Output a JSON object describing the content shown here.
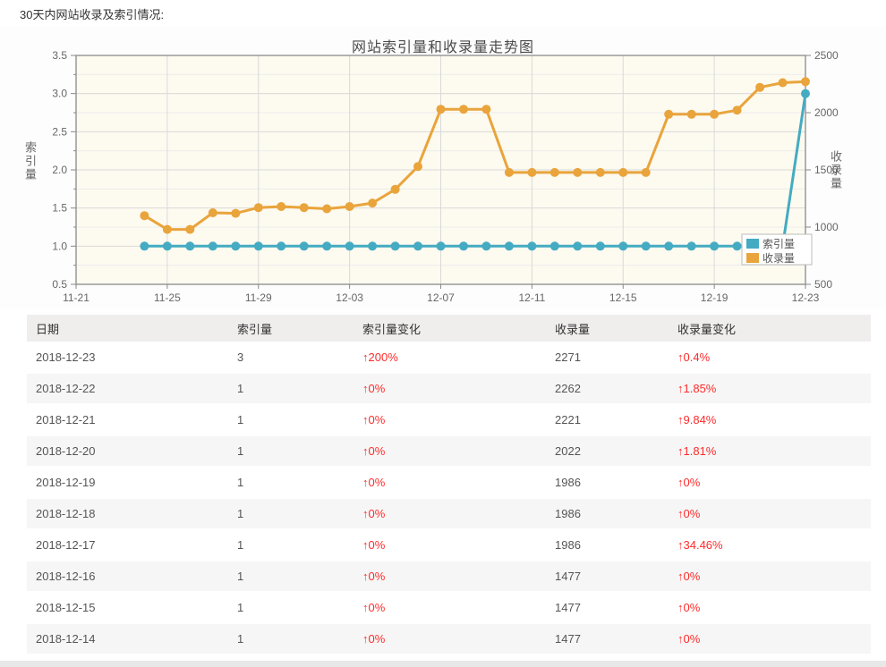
{
  "page": {
    "title": "30天内网站收录及索引情况:"
  },
  "chart_data": {
    "type": "line",
    "title": "网站索引量和收录量走势图",
    "x_tick_labels": [
      "11-21",
      "11-25",
      "11-29",
      "12-03",
      "12-07",
      "12-11",
      "12-15",
      "12-19",
      "12-23"
    ],
    "x_tick_step_days": 4,
    "x_range_days": 32,
    "grid": true,
    "left_axis": {
      "label": "索引量",
      "min": 0.5,
      "max": 3.5,
      "tick_step": 0.5,
      "tick_labels": [
        "0.5",
        "1.0",
        "1.5",
        "2.0",
        "2.5",
        "3.0",
        "3.5"
      ]
    },
    "right_axis": {
      "label": "收录量",
      "min": 500,
      "max": 2500,
      "tick_step": 500,
      "tick_labels": [
        "500",
        "1000",
        "1500",
        "2000",
        "2500"
      ]
    },
    "series": [
      {
        "name": "收录量",
        "axis": "right",
        "color": "#e9a43c",
        "start_day_offset": 3,
        "dates": [
          "11-24",
          "11-25",
          "11-26",
          "11-27",
          "11-28",
          "11-29",
          "11-30",
          "12-01",
          "12-02",
          "12-03",
          "12-04",
          "12-05",
          "12-06",
          "12-07",
          "12-08",
          "12-09",
          "12-10",
          "12-11",
          "12-12",
          "12-13",
          "12-14",
          "12-15",
          "12-16",
          "12-17",
          "12-18",
          "12-19",
          "12-20",
          "12-21",
          "12-22",
          "12-23"
        ],
        "values": [
          1100,
          980,
          980,
          1125,
          1120,
          1170,
          1180,
          1170,
          1160,
          1180,
          1210,
          1330,
          1530,
          2030,
          2030,
          2030,
          1477,
          1477,
          1477,
          1477,
          1477,
          1477,
          1477,
          1986,
          1986,
          1986,
          2022,
          2221,
          2262,
          2271
        ]
      },
      {
        "name": "索引量",
        "axis": "left",
        "color": "#44abc2",
        "start_day_offset": 3,
        "dates": [
          "11-24",
          "11-25",
          "11-26",
          "11-27",
          "11-28",
          "11-29",
          "11-30",
          "12-01",
          "12-02",
          "12-03",
          "12-04",
          "12-05",
          "12-06",
          "12-07",
          "12-08",
          "12-09",
          "12-10",
          "12-11",
          "12-12",
          "12-13",
          "12-14",
          "12-15",
          "12-16",
          "12-17",
          "12-18",
          "12-19",
          "12-20",
          "12-21",
          "12-22",
          "12-23"
        ],
        "values": [
          1,
          1,
          1,
          1,
          1,
          1,
          1,
          1,
          1,
          1,
          1,
          1,
          1,
          1,
          1,
          1,
          1,
          1,
          1,
          1,
          1,
          1,
          1,
          1,
          1,
          1,
          1,
          1,
          1,
          3
        ]
      }
    ],
    "legend": {
      "position": "bottom-right-inside",
      "items": [
        "索引量",
        "收录量"
      ],
      "colors": [
        "#44abc2",
        "#e9a43c"
      ]
    },
    "colors": {
      "plot_bg": "#fdfaef",
      "plot_border": "#999999",
      "grid_major": "#d9d9d9",
      "grid_minor": "#ececec",
      "tick": "#888888",
      "tick_text": "#666666"
    }
  },
  "table": {
    "headers": [
      "日期",
      "索引量",
      "索引量变化",
      "收录量",
      "收录量变化"
    ],
    "rows": [
      {
        "date": "2018-12-23",
        "index": "3",
        "index_change": "↑200%",
        "inclusion": "2271",
        "inclusion_change": "↑0.4%"
      },
      {
        "date": "2018-12-22",
        "index": "1",
        "index_change": "↑0%",
        "inclusion": "2262",
        "inclusion_change": "↑1.85%"
      },
      {
        "date": "2018-12-21",
        "index": "1",
        "index_change": "↑0%",
        "inclusion": "2221",
        "inclusion_change": "↑9.84%"
      },
      {
        "date": "2018-12-20",
        "index": "1",
        "index_change": "↑0%",
        "inclusion": "2022",
        "inclusion_change": "↑1.81%"
      },
      {
        "date": "2018-12-19",
        "index": "1",
        "index_change": "↑0%",
        "inclusion": "1986",
        "inclusion_change": "↑0%"
      },
      {
        "date": "2018-12-18",
        "index": "1",
        "index_change": "↑0%",
        "inclusion": "1986",
        "inclusion_change": "↑0%"
      },
      {
        "date": "2018-12-17",
        "index": "1",
        "index_change": "↑0%",
        "inclusion": "1986",
        "inclusion_change": "↑34.46%"
      },
      {
        "date": "2018-12-16",
        "index": "1",
        "index_change": "↑0%",
        "inclusion": "1477",
        "inclusion_change": "↑0%"
      },
      {
        "date": "2018-12-15",
        "index": "1",
        "index_change": "↑0%",
        "inclusion": "1477",
        "inclusion_change": "↑0%"
      },
      {
        "date": "2018-12-14",
        "index": "1",
        "index_change": "↑0%",
        "inclusion": "1477",
        "inclusion_change": "↑0%"
      }
    ],
    "change_color": "#ff2b2b"
  }
}
